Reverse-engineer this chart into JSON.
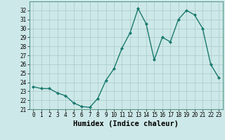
{
  "x": [
    0,
    1,
    2,
    3,
    4,
    5,
    6,
    7,
    8,
    9,
    10,
    11,
    12,
    13,
    14,
    15,
    16,
    17,
    18,
    19,
    20,
    21,
    22,
    23
  ],
  "y": [
    23.5,
    23.3,
    23.3,
    22.8,
    22.5,
    21.7,
    21.3,
    21.2,
    22.2,
    24.2,
    25.5,
    27.8,
    29.5,
    32.2,
    30.5,
    26.5,
    29.0,
    28.5,
    31.0,
    32.0,
    31.5,
    30.0,
    26.0,
    24.5
  ],
  "xlabel": "Humidex (Indice chaleur)",
  "ylim": [
    21,
    33
  ],
  "xlim": [
    -0.5,
    23.5
  ],
  "yticks": [
    21,
    22,
    23,
    24,
    25,
    26,
    27,
    28,
    29,
    30,
    31,
    32
  ],
  "xticks": [
    0,
    1,
    2,
    3,
    4,
    5,
    6,
    7,
    8,
    9,
    10,
    11,
    12,
    13,
    14,
    15,
    16,
    17,
    18,
    19,
    20,
    21,
    22,
    23
  ],
  "line_color": "#1a7a6e",
  "marker": "D",
  "marker_size": 2.0,
  "bg_color": "#cde8e8",
  "grid_color": "#aecece",
  "tick_label_fontsize": 5.5,
  "xlabel_fontsize": 7.5,
  "linewidth": 1.0
}
